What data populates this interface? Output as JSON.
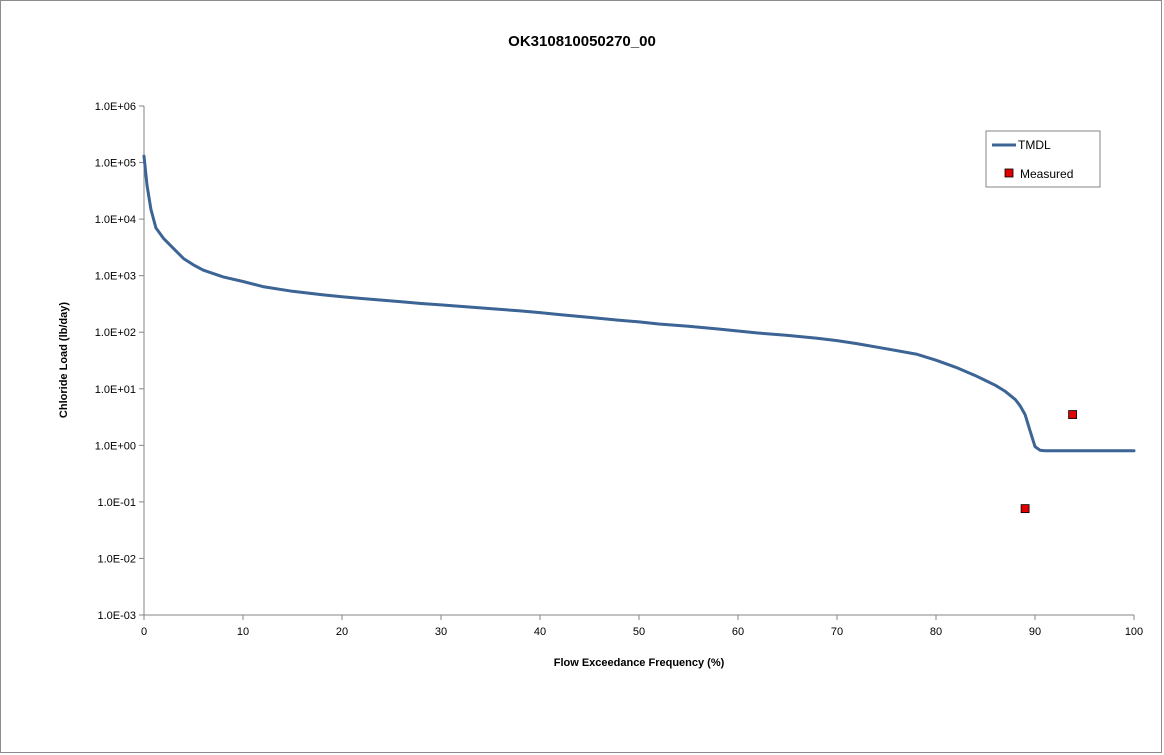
{
  "chart_data": {
    "type": "line",
    "title": "OK310810050270_00",
    "xlabel": "Flow Exceedance Frequency (%)",
    "ylabel": "Chloride Load (lb/day)",
    "xlim": [
      0,
      100
    ],
    "ylim": [
      0.001,
      1000000
    ],
    "yscale": "log",
    "x_ticks": [
      0,
      10,
      20,
      30,
      40,
      50,
      60,
      70,
      80,
      90,
      100
    ],
    "x_tick_labels": [
      "0",
      "10",
      "20",
      "30",
      "40",
      "50",
      "60",
      "70",
      "80",
      "90",
      "100"
    ],
    "y_ticks": [
      0.001,
      0.01,
      0.1,
      1,
      10,
      100,
      1000,
      10000,
      100000,
      1000000
    ],
    "y_tick_labels": [
      "1.0E-03",
      "1.0E-02",
      "1.0E-01",
      "1.0E+00",
      "1.0E+01",
      "1.0E+02",
      "1.0E+03",
      "1.0E+04",
      "1.0E+05",
      "1.0E+06"
    ],
    "grid": false,
    "legend_position": "top-right",
    "series": [
      {
        "name": "TMDL",
        "kind": "line",
        "color": "#3c6494",
        "x": [
          0,
          0.3,
          0.7,
          1.2,
          2,
          3,
          4,
          5,
          6,
          8,
          10,
          12,
          15,
          18,
          20,
          22,
          24,
          26,
          28,
          30,
          32,
          35,
          38,
          40,
          42,
          45,
          48,
          50,
          52,
          55,
          58,
          60,
          62,
          65,
          68,
          70,
          72,
          75,
          78,
          80,
          82,
          84,
          85,
          86,
          87,
          88,
          88.5,
          89,
          89.5,
          90,
          90.5,
          91,
          92,
          95,
          100
        ],
        "y": [
          130000,
          40000,
          15000,
          7000,
          4500,
          3000,
          2000,
          1550,
          1250,
          950,
          790,
          640,
          530,
          460,
          425,
          395,
          370,
          345,
          322,
          304,
          286,
          262,
          238,
          222,
          205,
          183,
          163,
          152,
          140,
          128,
          114,
          105,
          97,
          88,
          78,
          71,
          63,
          51,
          41,
          32,
          24,
          17,
          14,
          11.5,
          9,
          6.5,
          5,
          3.5,
          1.8,
          0.95,
          0.82,
          0.8,
          0.8,
          0.8,
          0.8
        ]
      },
      {
        "name": "Measured",
        "kind": "scatter",
        "color": "#e00000",
        "x": [
          89.0,
          93.8
        ],
        "y": [
          0.076,
          3.5
        ]
      }
    ]
  }
}
